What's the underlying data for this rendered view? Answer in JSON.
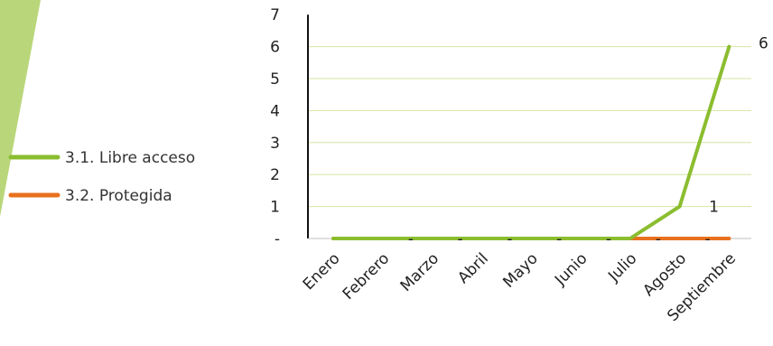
{
  "colors": {
    "accent_band": "#b9d77a",
    "grid": "#d4e6a5",
    "axis": "#111111",
    "text": "#222222"
  },
  "chart_data": {
    "type": "line",
    "title": "",
    "xlabel": "",
    "ylabel": "",
    "categories": [
      "Enero",
      "Febrero",
      "Marzo",
      "Abril",
      "Mayo",
      "Junio",
      "Julio",
      "Agosto",
      "Septiembre"
    ],
    "y_ticks": [
      "-",
      "1",
      "2",
      "3",
      "4",
      "5",
      "6",
      "7"
    ],
    "ylim": [
      0,
      7
    ],
    "grid": true,
    "legend_position": "left",
    "series": [
      {
        "name": "3.1. Libre acceso",
        "color": "#8bbd2f",
        "values": [
          0,
          0,
          0,
          0,
          0,
          0,
          0,
          1,
          6
        ],
        "data_labels": [
          {
            "index": 7,
            "text": "1"
          },
          {
            "index": 8,
            "text": "6"
          }
        ]
      },
      {
        "name": "3.2. Protegida",
        "color": "#e8711e",
        "values": [
          0,
          0,
          0,
          0,
          0,
          0,
          0,
          0,
          0
        ],
        "data_labels": [
          {
            "index": 1,
            "text": "-"
          },
          {
            "index": 2,
            "text": "-"
          },
          {
            "index": 3,
            "text": "-"
          },
          {
            "index": 4,
            "text": "-"
          },
          {
            "index": 5,
            "text": "-"
          },
          {
            "index": 6,
            "text": "-"
          },
          {
            "index": 7,
            "text": "-"
          }
        ]
      }
    ]
  }
}
